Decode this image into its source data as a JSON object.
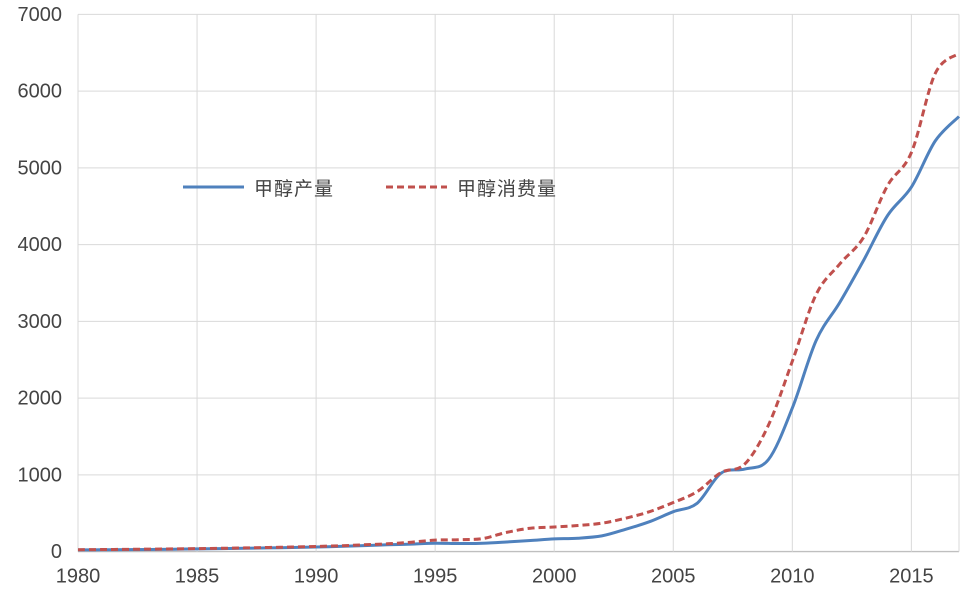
{
  "chart_data": {
    "type": "line",
    "title": "",
    "xlabel": "",
    "ylabel": "",
    "x_range": [
      1980,
      2017
    ],
    "y_range": [
      0,
      7000
    ],
    "x_tick_years": [
      1980,
      1985,
      1990,
      1995,
      2000,
      2005,
      2010,
      2015
    ],
    "y_tick_values": [
      0,
      1000,
      2000,
      3000,
      4000,
      5000,
      6000,
      7000
    ],
    "grid": true,
    "legend_position": "inside-top-left",
    "x": [
      1980,
      1981,
      1982,
      1983,
      1984,
      1985,
      1986,
      1987,
      1988,
      1989,
      1990,
      1991,
      1992,
      1993,
      1994,
      1995,
      1996,
      1997,
      1998,
      1999,
      2000,
      2001,
      2002,
      2003,
      2004,
      2005,
      2006,
      2007,
      2008,
      2009,
      2010,
      2011,
      2012,
      2013,
      2014,
      2015,
      2016,
      2017
    ],
    "series": [
      {
        "name": "甲醇产量",
        "color": "#4F81BD",
        "line_style": "solid",
        "values": [
          22,
          24,
          26,
          28,
          31,
          35,
          39,
          43,
          48,
          53,
          60,
          68,
          78,
          88,
          98,
          110,
          105,
          108,
          125,
          145,
          165,
          175,
          205,
          290,
          390,
          520,
          630,
          1020,
          1075,
          1200,
          1870,
          2750,
          3250,
          3800,
          4380,
          4750,
          5350,
          5670
        ]
      },
      {
        "name": "甲醇消费量",
        "color": "#C0504D",
        "line_style": "dashed",
        "values": [
          25,
          27,
          29,
          32,
          35,
          39,
          43,
          48,
          54,
          60,
          67,
          76,
          88,
          102,
          122,
          150,
          155,
          170,
          250,
          305,
          320,
          340,
          370,
          435,
          520,
          640,
          780,
          1030,
          1140,
          1650,
          2480,
          3350,
          3750,
          4100,
          4770,
          5200,
          6230,
          6490
        ]
      }
    ]
  },
  "colors": {
    "grid": "#D9D9D9",
    "axis": "#BFBFBF",
    "tick_label": "#444444",
    "background": "#FFFFFF",
    "series_production": "#4F81BD",
    "series_consumption": "#C0504D"
  }
}
